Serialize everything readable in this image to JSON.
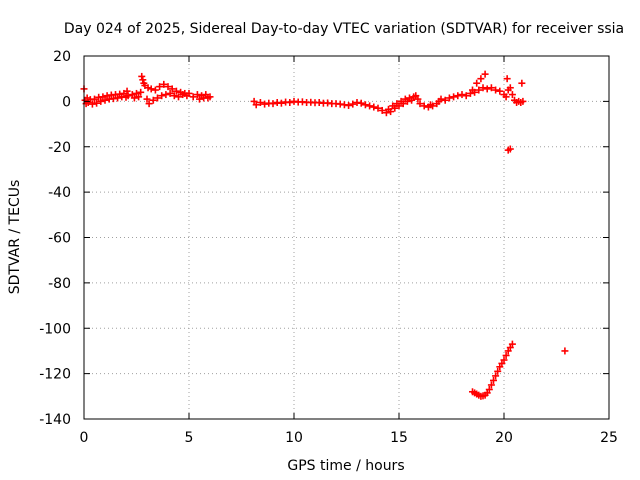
{
  "chart_data": {
    "type": "scatter",
    "title": "Day 024 of 2025, Sidereal Day-to-day VTEC variation (SDTVAR) for receiver ssia",
    "xlabel": "GPS time / hours",
    "ylabel": "SDTVAR / TECUs",
    "xlim": [
      0,
      25
    ],
    "ylim": [
      -140,
      20
    ],
    "xticks": [
      0,
      5,
      10,
      15,
      20,
      25
    ],
    "yticks": [
      20,
      0,
      -20,
      -40,
      -60,
      -80,
      -100,
      -120,
      -140
    ],
    "grid": true,
    "marker": "plus",
    "color": "#ff0000",
    "series": [
      {
        "values_description": "",
        "points": [
          [
            0.0,
            5.5
          ],
          [
            0.05,
            0.5
          ],
          [
            0.1,
            -1.0
          ],
          [
            0.15,
            1.5
          ],
          [
            0.2,
            -0.5
          ],
          [
            0.3,
            0.8
          ],
          [
            0.4,
            -1.2
          ],
          [
            0.5,
            1.0
          ],
          [
            0.6,
            -0.8
          ],
          [
            0.7,
            1.8
          ],
          [
            0.8,
            0.0
          ],
          [
            0.9,
            2.0
          ],
          [
            1.0,
            0.5
          ],
          [
            1.1,
            2.5
          ],
          [
            1.2,
            1.0
          ],
          [
            1.3,
            2.8
          ],
          [
            1.4,
            1.2
          ],
          [
            1.5,
            3.0
          ],
          [
            1.6,
            1.5
          ],
          [
            1.7,
            3.2
          ],
          [
            1.8,
            2.0
          ],
          [
            1.9,
            3.5
          ],
          [
            2.0,
            1.8
          ],
          [
            2.05,
            4.5
          ],
          [
            2.1,
            2.5
          ],
          [
            2.3,
            3.0
          ],
          [
            2.4,
            1.5
          ],
          [
            2.5,
            3.5
          ],
          [
            2.6,
            2.0
          ],
          [
            2.7,
            4.0
          ],
          [
            2.75,
            11.0
          ],
          [
            2.8,
            9.5
          ],
          [
            2.85,
            8.0
          ],
          [
            2.9,
            7.0
          ],
          [
            3.0,
            1.0
          ],
          [
            3.05,
            6.0
          ],
          [
            3.1,
            -1.0
          ],
          [
            3.2,
            5.5
          ],
          [
            3.3,
            0.5
          ],
          [
            3.4,
            5.0
          ],
          [
            3.5,
            1.5
          ],
          [
            3.6,
            6.5
          ],
          [
            3.7,
            2.5
          ],
          [
            3.8,
            7.5
          ],
          [
            3.9,
            3.0
          ],
          [
            4.0,
            6.5
          ],
          [
            4.1,
            3.5
          ],
          [
            4.2,
            5.5
          ],
          [
            4.3,
            2.5
          ],
          [
            4.4,
            4.5
          ],
          [
            4.5,
            2.0
          ],
          [
            4.6,
            4.0
          ],
          [
            4.7,
            3.0
          ],
          [
            4.8,
            3.5
          ],
          [
            4.9,
            2.5
          ],
          [
            5.0,
            3.5
          ],
          [
            5.2,
            2.0
          ],
          [
            5.4,
            3.0
          ],
          [
            5.5,
            1.0
          ],
          [
            5.6,
            2.5
          ],
          [
            5.7,
            1.5
          ],
          [
            5.8,
            3.0
          ],
          [
            5.9,
            1.5
          ],
          [
            6.0,
            2.0
          ],
          [
            8.1,
            0.0
          ],
          [
            8.2,
            -1.5
          ],
          [
            8.4,
            -0.5
          ],
          [
            8.6,
            -1.2
          ],
          [
            8.8,
            -0.8
          ],
          [
            9.0,
            -1.0
          ],
          [
            9.2,
            -0.5
          ],
          [
            9.4,
            -0.8
          ],
          [
            9.6,
            -0.3
          ],
          [
            9.8,
            -0.5
          ],
          [
            10.0,
            0.0
          ],
          [
            10.2,
            -0.3
          ],
          [
            10.4,
            -0.2
          ],
          [
            10.6,
            -0.5
          ],
          [
            10.8,
            -0.4
          ],
          [
            11.0,
            -0.6
          ],
          [
            11.2,
            -0.5
          ],
          [
            11.4,
            -0.8
          ],
          [
            11.6,
            -0.7
          ],
          [
            11.8,
            -1.0
          ],
          [
            12.0,
            -1.0
          ],
          [
            12.2,
            -1.2
          ],
          [
            12.4,
            -1.5
          ],
          [
            12.6,
            -1.8
          ],
          [
            12.8,
            -1.2
          ],
          [
            13.0,
            -0.5
          ],
          [
            13.2,
            -0.8
          ],
          [
            13.4,
            -1.5
          ],
          [
            13.6,
            -2.0
          ],
          [
            13.8,
            -2.5
          ],
          [
            14.0,
            -3.0
          ],
          [
            14.2,
            -4.0
          ],
          [
            14.4,
            -5.0
          ],
          [
            14.5,
            -3.5
          ],
          [
            14.6,
            -4.5
          ],
          [
            14.7,
            -2.0
          ],
          [
            14.8,
            -3.0
          ],
          [
            14.9,
            -1.0
          ],
          [
            15.0,
            -2.0
          ],
          [
            15.1,
            0.0
          ],
          [
            15.2,
            -1.0
          ],
          [
            15.3,
            1.0
          ],
          [
            15.4,
            0.0
          ],
          [
            15.5,
            1.5
          ],
          [
            15.6,
            0.5
          ],
          [
            15.7,
            2.0
          ],
          [
            15.8,
            2.5
          ],
          [
            15.9,
            1.0
          ],
          [
            16.0,
            -1.0
          ],
          [
            16.2,
            -2.0
          ],
          [
            16.4,
            -2.5
          ],
          [
            16.5,
            -1.5
          ],
          [
            16.6,
            -2.0
          ],
          [
            16.8,
            -1.0
          ],
          [
            16.9,
            0.0
          ],
          [
            17.0,
            1.0
          ],
          [
            17.2,
            0.5
          ],
          [
            17.4,
            1.5
          ],
          [
            17.6,
            2.0
          ],
          [
            17.8,
            2.5
          ],
          [
            18.0,
            3.0
          ],
          [
            18.2,
            2.5
          ],
          [
            18.4,
            3.5
          ],
          [
            18.5,
            5.0
          ],
          [
            18.6,
            4.0
          ],
          [
            18.7,
            8.0
          ],
          [
            18.8,
            5.0
          ],
          [
            18.9,
            10.0
          ],
          [
            19.0,
            6.0
          ],
          [
            19.1,
            12.0
          ],
          [
            19.2,
            5.5
          ],
          [
            19.4,
            6.0
          ],
          [
            19.6,
            5.0
          ],
          [
            19.8,
            4.5
          ],
          [
            20.0,
            3.0
          ],
          [
            20.1,
            2.0
          ],
          [
            20.15,
            10.0
          ],
          [
            20.2,
            5.0
          ],
          [
            20.3,
            6.0
          ],
          [
            20.4,
            3.0
          ],
          [
            20.5,
            0.5
          ],
          [
            20.6,
            -0.5
          ],
          [
            20.7,
            0.0
          ],
          [
            20.8,
            -0.5
          ],
          [
            20.85,
            8.0
          ],
          [
            20.9,
            0.0
          ],
          [
            20.2,
            -21.5
          ],
          [
            20.3,
            -21.0
          ],
          [
            18.5,
            -128.0
          ],
          [
            18.6,
            -128.5
          ],
          [
            18.7,
            -129.0
          ],
          [
            18.8,
            -129.5
          ],
          [
            18.9,
            -130.0
          ],
          [
            19.0,
            -129.8
          ],
          [
            19.1,
            -129.5
          ],
          [
            19.2,
            -128.5
          ],
          [
            19.3,
            -127.0
          ],
          [
            19.4,
            -125.0
          ],
          [
            19.5,
            -123.0
          ],
          [
            19.6,
            -121.0
          ],
          [
            19.7,
            -119.0
          ],
          [
            19.8,
            -117.0
          ],
          [
            19.9,
            -115.5
          ],
          [
            20.0,
            -114.0
          ],
          [
            20.1,
            -112.0
          ],
          [
            20.2,
            -110.0
          ],
          [
            20.3,
            -108.5
          ],
          [
            20.4,
            -107.0
          ],
          [
            22.9,
            -110.0
          ]
        ]
      }
    ]
  }
}
